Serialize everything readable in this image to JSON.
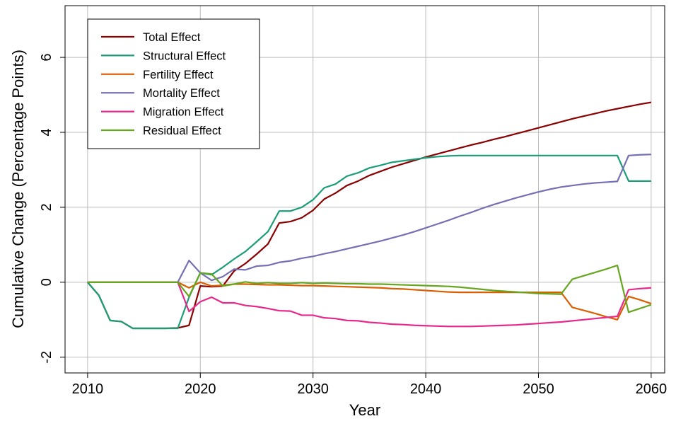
{
  "chart_data": {
    "type": "line",
    "xlabel": "Year",
    "ylabel": "Cumulative Change (Percentage Points)",
    "x": [
      2010,
      2011,
      2012,
      2013,
      2014,
      2015,
      2016,
      2017,
      2018,
      2019,
      2020,
      2021,
      2022,
      2023,
      2024,
      2025,
      2026,
      2027,
      2028,
      2029,
      2030,
      2031,
      2032,
      2033,
      2034,
      2035,
      2036,
      2037,
      2038,
      2039,
      2040,
      2041,
      2042,
      2043,
      2044,
      2045,
      2046,
      2047,
      2048,
      2049,
      2050,
      2051,
      2052,
      2053,
      2054,
      2055,
      2056,
      2057,
      2058,
      2059,
      2060
    ],
    "series": [
      {
        "name": "Total Effect",
        "color": "#8b0000",
        "values": [
          0,
          -0.35,
          -1.02,
          -1.05,
          -1.23,
          -1.23,
          -1.23,
          -1.23,
          -1.22,
          -1.15,
          -0.1,
          -0.12,
          -0.1,
          0.3,
          0.5,
          0.75,
          1.02,
          1.58,
          1.62,
          1.72,
          1.92,
          2.22,
          2.38,
          2.58,
          2.7,
          2.85,
          2.96,
          3.07,
          3.16,
          3.25,
          3.34,
          3.42,
          3.5,
          3.58,
          3.66,
          3.73,
          3.81,
          3.88,
          3.96,
          4.04,
          4.12,
          4.2,
          4.28,
          4.36,
          4.43,
          4.5,
          4.57,
          4.63,
          4.69,
          4.75,
          4.8
        ]
      },
      {
        "name": "Structural Effect",
        "color": "#1b9e77",
        "values": [
          0,
          -0.35,
          -1.02,
          -1.05,
          -1.23,
          -1.23,
          -1.23,
          -1.23,
          -1.23,
          -0.4,
          0.25,
          0.2,
          0.4,
          0.62,
          0.82,
          1.08,
          1.35,
          1.9,
          1.9,
          2.0,
          2.2,
          2.52,
          2.62,
          2.83,
          2.92,
          3.05,
          3.12,
          3.2,
          3.24,
          3.28,
          3.32,
          3.35,
          3.37,
          3.38,
          3.38,
          3.38,
          3.38,
          3.38,
          3.38,
          3.38,
          3.38,
          3.38,
          3.38,
          3.38,
          3.38,
          3.38,
          3.38,
          3.38,
          2.7,
          2.7,
          2.7
        ]
      },
      {
        "name": "Fertility Effect",
        "color": "#d95f02",
        "values": [
          0,
          0,
          0,
          0,
          0,
          0,
          0,
          0,
          0,
          -0.15,
          0,
          -0.1,
          -0.08,
          -0.05,
          -0.05,
          -0.06,
          -0.07,
          -0.07,
          -0.08,
          -0.09,
          -0.09,
          -0.1,
          -0.11,
          -0.12,
          -0.13,
          -0.14,
          -0.15,
          -0.17,
          -0.18,
          -0.2,
          -0.22,
          -0.24,
          -0.26,
          -0.27,
          -0.27,
          -0.27,
          -0.27,
          -0.27,
          -0.27,
          -0.27,
          -0.27,
          -0.27,
          -0.27,
          -0.67,
          -0.75,
          -0.83,
          -0.92,
          -1.0,
          -0.38,
          -0.47,
          -0.57
        ]
      },
      {
        "name": "Mortality Effect",
        "color": "#7570b3",
        "values": [
          0,
          0,
          0,
          0,
          0,
          0,
          0,
          0,
          0,
          0.58,
          0.25,
          0.05,
          0.15,
          0.35,
          0.33,
          0.43,
          0.45,
          0.53,
          0.57,
          0.64,
          0.69,
          0.76,
          0.82,
          0.89,
          0.96,
          1.03,
          1.1,
          1.18,
          1.26,
          1.35,
          1.45,
          1.55,
          1.65,
          1.76,
          1.86,
          1.97,
          2.07,
          2.16,
          2.25,
          2.33,
          2.41,
          2.48,
          2.54,
          2.58,
          2.62,
          2.65,
          2.67,
          2.69,
          3.38,
          3.4,
          3.41
        ]
      },
      {
        "name": "Migration Effect",
        "color": "#e7298a",
        "values": [
          0,
          0,
          0,
          0,
          0,
          0,
          0,
          0,
          0,
          -0.78,
          -0.52,
          -0.4,
          -0.55,
          -0.55,
          -0.62,
          -0.65,
          -0.7,
          -0.76,
          -0.77,
          -0.88,
          -0.88,
          -0.95,
          -0.97,
          -1.02,
          -1.03,
          -1.07,
          -1.09,
          -1.12,
          -1.13,
          -1.15,
          -1.16,
          -1.17,
          -1.18,
          -1.18,
          -1.18,
          -1.17,
          -1.16,
          -1.15,
          -1.14,
          -1.12,
          -1.1,
          -1.08,
          -1.06,
          -1.03,
          -1.0,
          -0.97,
          -0.94,
          -0.91,
          -0.2,
          -0.17,
          -0.15
        ]
      },
      {
        "name": "Residual Effect",
        "color": "#66a61e",
        "values": [
          0,
          0,
          0,
          0,
          0,
          0,
          0,
          0,
          0,
          -0.38,
          0.25,
          0.22,
          -0.1,
          -0.05,
          0.01,
          -0.03,
          -0.01,
          -0.03,
          -0.03,
          -0.01,
          -0.03,
          -0.02,
          -0.03,
          -0.04,
          -0.04,
          -0.05,
          -0.05,
          -0.06,
          -0.07,
          -0.08,
          -0.09,
          -0.1,
          -0.11,
          -0.13,
          -0.16,
          -0.19,
          -0.22,
          -0.24,
          -0.26,
          -0.28,
          -0.3,
          -0.31,
          -0.32,
          0.08,
          0.17,
          0.26,
          0.35,
          0.45,
          -0.8,
          -0.7,
          -0.6
        ]
      }
    ],
    "xlim": [
      2008,
      2061.2
    ],
    "ylim": [
      -2.42,
      7.38
    ],
    "xticks": [
      2010,
      2020,
      2030,
      2040,
      2050,
      2060
    ],
    "yticks": [
      -2,
      0,
      2,
      4,
      6
    ],
    "grid": true,
    "legend": "topleft"
  }
}
